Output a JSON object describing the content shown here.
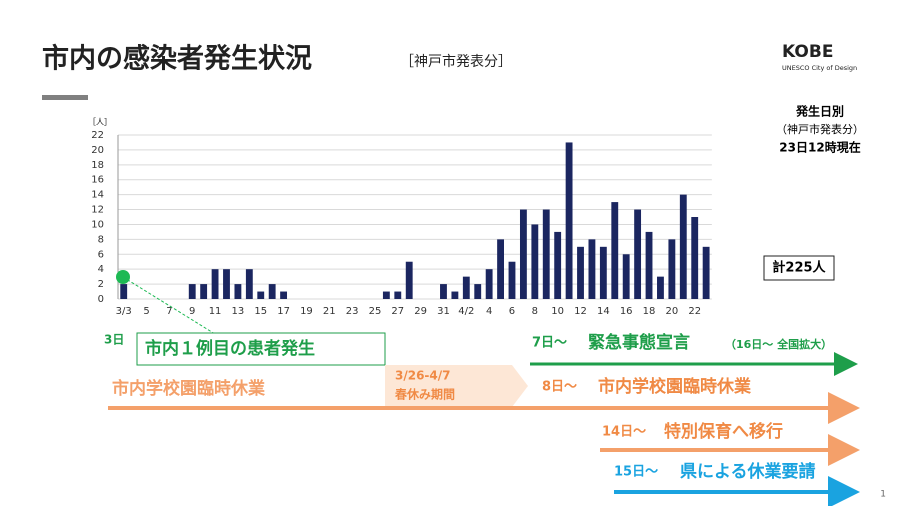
{
  "header": {
    "title": "市内の感染者発生状況",
    "subtitle": "［神戸市発表分］",
    "logo": "KOBE",
    "logo_sub": "UNESCO City of Design"
  },
  "chart_data": {
    "type": "bar",
    "y_label": "［人］",
    "color": "#1b2660",
    "grid": true,
    "categories": [
      "3/3",
      null,
      "5",
      null,
      "7",
      null,
      "9",
      null,
      "11",
      null,
      "13",
      null,
      "15",
      null,
      "17",
      null,
      "19",
      null,
      "21",
      null,
      "23",
      null,
      "25",
      null,
      "27",
      null,
      "29",
      null,
      "31",
      null,
      "4/2",
      null,
      "4",
      null,
      "6",
      null,
      "8",
      null,
      "10",
      null,
      "12",
      null,
      "14",
      null,
      "16",
      null,
      "18",
      null,
      "20",
      null,
      "22",
      null
    ],
    "values": [
      2,
      0,
      0,
      0,
      0,
      0,
      2,
      2,
      4,
      4,
      2,
      4,
      1,
      2,
      1,
      0,
      0,
      0,
      0,
      0,
      0,
      0,
      0,
      1,
      1,
      5,
      0,
      0,
      2,
      1,
      3,
      2,
      4,
      8,
      5,
      12,
      10,
      12,
      9,
      21,
      7,
      8,
      7,
      13,
      6,
      12,
      9,
      3,
      8,
      14,
      11,
      7
    ],
    "ylim": [
      0,
      22
    ],
    "yticks": [
      0,
      2,
      4,
      6,
      8,
      10,
      12,
      14,
      16,
      18,
      20,
      22
    ]
  },
  "note": [
    "発生日別",
    "（神戸市発表分）",
    "23日12時現在"
  ],
  "total": "計225人",
  "annotations": {
    "first_day": "3日",
    "first_case": "市内１例目の患者発生",
    "emergency_day": "7日～",
    "emergency": "緊急事態宣言",
    "emergency_ext": "（16日～ 全国拡大）",
    "school_closure": "市内学校園臨時休業",
    "spring_dates": "3/26-4/7",
    "spring": "春休み期間",
    "school2_day": "8日～",
    "school2": "市内学校園臨時休業",
    "care_day": "14日～",
    "care": "特別保育へ移行",
    "request_day": "15日～",
    "request": "県による休業要請"
  },
  "page_number": "1"
}
